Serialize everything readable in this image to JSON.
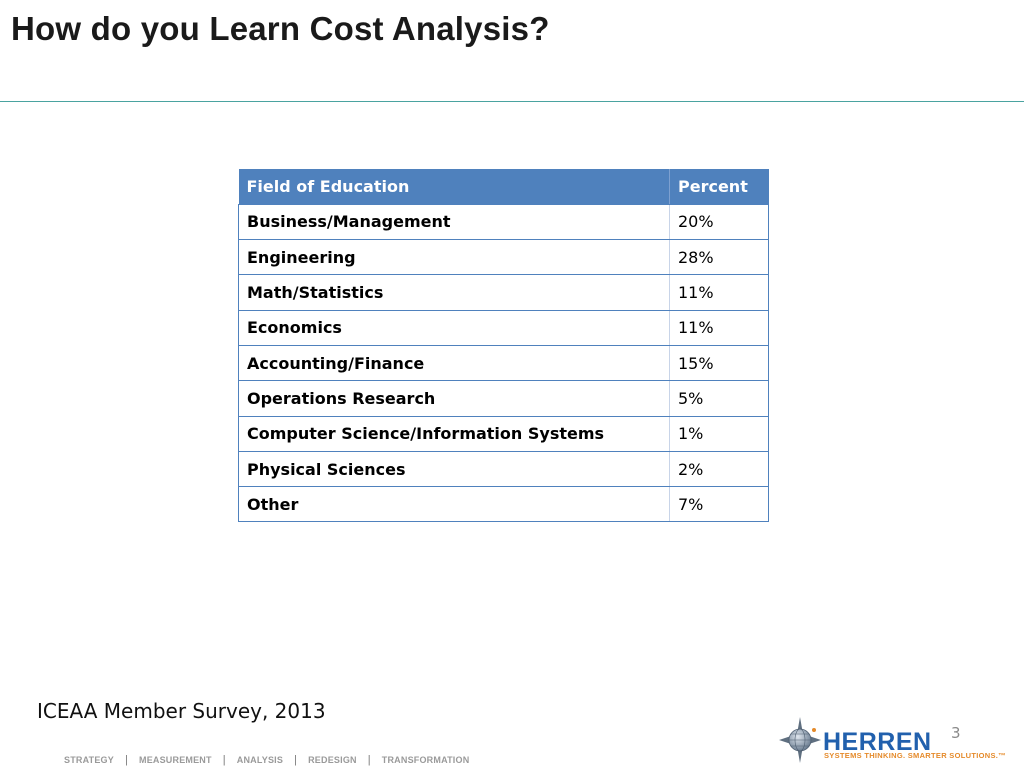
{
  "slide": {
    "title": "How do you Learn Cost Analysis?",
    "page_number": "3",
    "source": "ICEAA Member Survey, 2013"
  },
  "table": {
    "headers": [
      "Field of Education",
      "Percent"
    ],
    "rows": [
      {
        "field": "Business/Management",
        "percent": "20%"
      },
      {
        "field": "Engineering",
        "percent": "28%"
      },
      {
        "field": "Math/Statistics",
        "percent": "11%"
      },
      {
        "field": "Economics",
        "percent": "11%"
      },
      {
        "field": "Accounting/Finance",
        "percent": "15%"
      },
      {
        "field": "Operations Research",
        "percent": "5%"
      },
      {
        "field": "Computer Science/Information Systems",
        "percent": "1%"
      },
      {
        "field": "Physical Sciences",
        "percent": "2%"
      },
      {
        "field": "Other",
        "percent": "7%"
      }
    ]
  },
  "footer": {
    "nav": [
      "STRATEGY",
      "MEASUREMENT",
      "ANALYSIS",
      "REDESIGN",
      "TRANSFORMATION"
    ],
    "separator": "|"
  },
  "logo": {
    "name": "HERREN",
    "tagline": "SYSTEMS THINKING. SMARTER SOLUTIONS.™",
    "icon": "herren-star-globe-icon",
    "colors": {
      "primary": "#2160ad",
      "accent": "#e58a2a"
    }
  },
  "colors": {
    "table_header": "#4f81bd",
    "title_rule": "#4aa3a0"
  }
}
